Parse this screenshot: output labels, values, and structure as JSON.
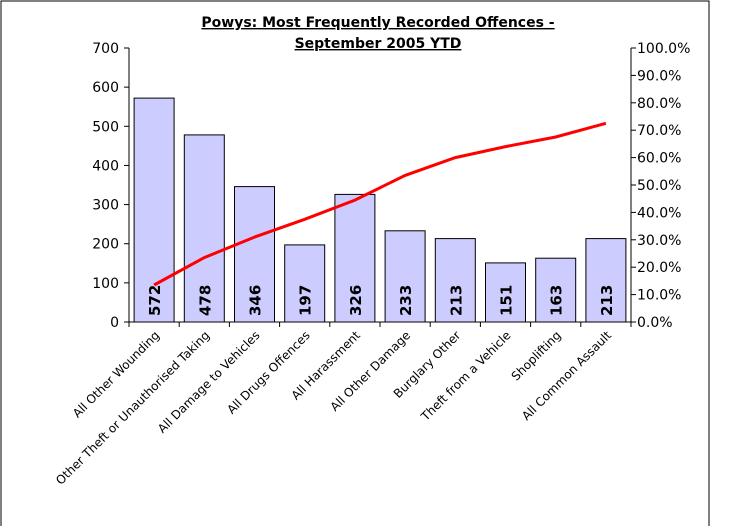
{
  "chart_data": {
    "type": "bar",
    "title_lines": [
      "Powys: Most Frequently Recorded Offences -",
      "September 2005 YTD"
    ],
    "categories": [
      "All Other Wounding",
      "Other Theft or Unauthorised Taking",
      "All Damage to Vehicles",
      "All Drugs Offences",
      "All Harassment",
      "All Other Damage",
      "Burglary Other",
      "Theft from a Vehicle",
      "Shoplifting",
      "All Common Assault"
    ],
    "values": [
      572,
      478,
      346,
      197,
      326,
      233,
      213,
      151,
      163,
      213
    ],
    "ylim": [
      0,
      700
    ],
    "y_ticks": [
      "0",
      "100",
      "200",
      "300",
      "400",
      "500",
      "600",
      "700"
    ],
    "y2lim": [
      0,
      1.0
    ],
    "y2_ticks": [
      "0.0%",
      "10.0%",
      "20.0%",
      "30.0%",
      "40.0%",
      "50.0%",
      "60.0%",
      "70.0%",
      "80.0%",
      "90.0%",
      "100.0%"
    ],
    "line_series": {
      "axis": "secondary",
      "values": [
        0.135,
        0.235,
        0.31,
        0.375,
        0.445,
        0.535,
        0.6,
        0.64,
        0.675,
        0.725
      ]
    },
    "grid": false,
    "legend": "none",
    "colors": {
      "bar": "#ccccff",
      "line": "#ff0000"
    }
  }
}
